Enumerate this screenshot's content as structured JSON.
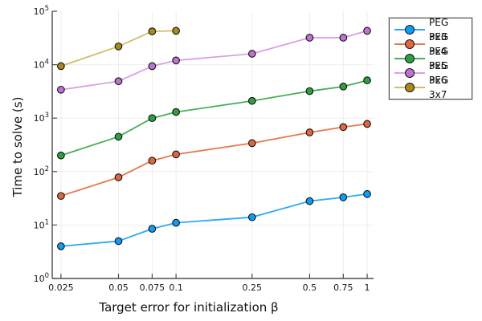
{
  "figure": {
    "background": "#ffffff",
    "spine_color": "#4d4d4d",
    "grid_color": "#eeeeee",
    "tick_label_color": "#1a1a1a",
    "marker_stroke_color": "#111111"
  },
  "chart_data": {
    "type": "line",
    "title": "",
    "xlabel": "Target error for initialization β",
    "ylabel": "Time to solve (s)",
    "x_scale": "log",
    "y_scale": "log",
    "xlim": [
      0.0225,
      1.08
    ],
    "ylim": [
      1,
      100000
    ],
    "grid": true,
    "legend_position": "outside-top-right",
    "x_ticks": [
      0.025,
      0.05,
      0.075,
      0.1,
      0.25,
      0.5,
      0.75,
      1
    ],
    "x_tick_labels": [
      "0.025",
      "0.05",
      "0.075",
      "0.1",
      "0.25",
      "0.5",
      "0.75",
      "1"
    ],
    "y_tick_exponents": [
      0,
      1,
      2,
      3,
      4,
      5
    ],
    "y_tick_base": "10",
    "series": [
      {
        "name": "PEG 3x3",
        "marker_color": "#0d9df5",
        "line_color": "#2ca9f4",
        "x": [
          0.025,
          0.05,
          0.075,
          0.1,
          0.25,
          0.5,
          0.75,
          1
        ],
        "y": [
          4,
          5,
          8.5,
          11,
          14,
          28,
          33,
          38
        ]
      },
      {
        "name": "PEG 3x4",
        "marker_color": "#de6742",
        "line_color": "#e8784f",
        "x": [
          0.025,
          0.05,
          0.075,
          0.1,
          0.25,
          0.5,
          0.75,
          1
        ],
        "y": [
          35,
          78,
          160,
          210,
          340,
          540,
          680,
          780
        ]
      },
      {
        "name": "PEG 3x5",
        "marker_color": "#2e9e43",
        "line_color": "#48ad5c",
        "x": [
          0.025,
          0.05,
          0.075,
          0.1,
          0.25,
          0.5,
          0.75,
          1
        ],
        "y": [
          200,
          450,
          1000,
          1300,
          2100,
          3200,
          3900,
          5100
        ]
      },
      {
        "name": "PEG 3x6",
        "marker_color": "#bf72d0",
        "line_color": "#d9a0e4",
        "x": [
          0.025,
          0.05,
          0.075,
          0.1,
          0.25,
          0.5,
          0.75,
          1
        ],
        "y": [
          3400,
          4900,
          9400,
          12000,
          16000,
          32000,
          32000,
          43000
        ]
      },
      {
        "name": "PEG 3x7",
        "marker_color": "#a8891a",
        "line_color": "#d6bc6a",
        "x": [
          0.025,
          0.05,
          0.075,
          0.1
        ],
        "y": [
          9400,
          22000,
          42000,
          43000
        ]
      }
    ]
  }
}
